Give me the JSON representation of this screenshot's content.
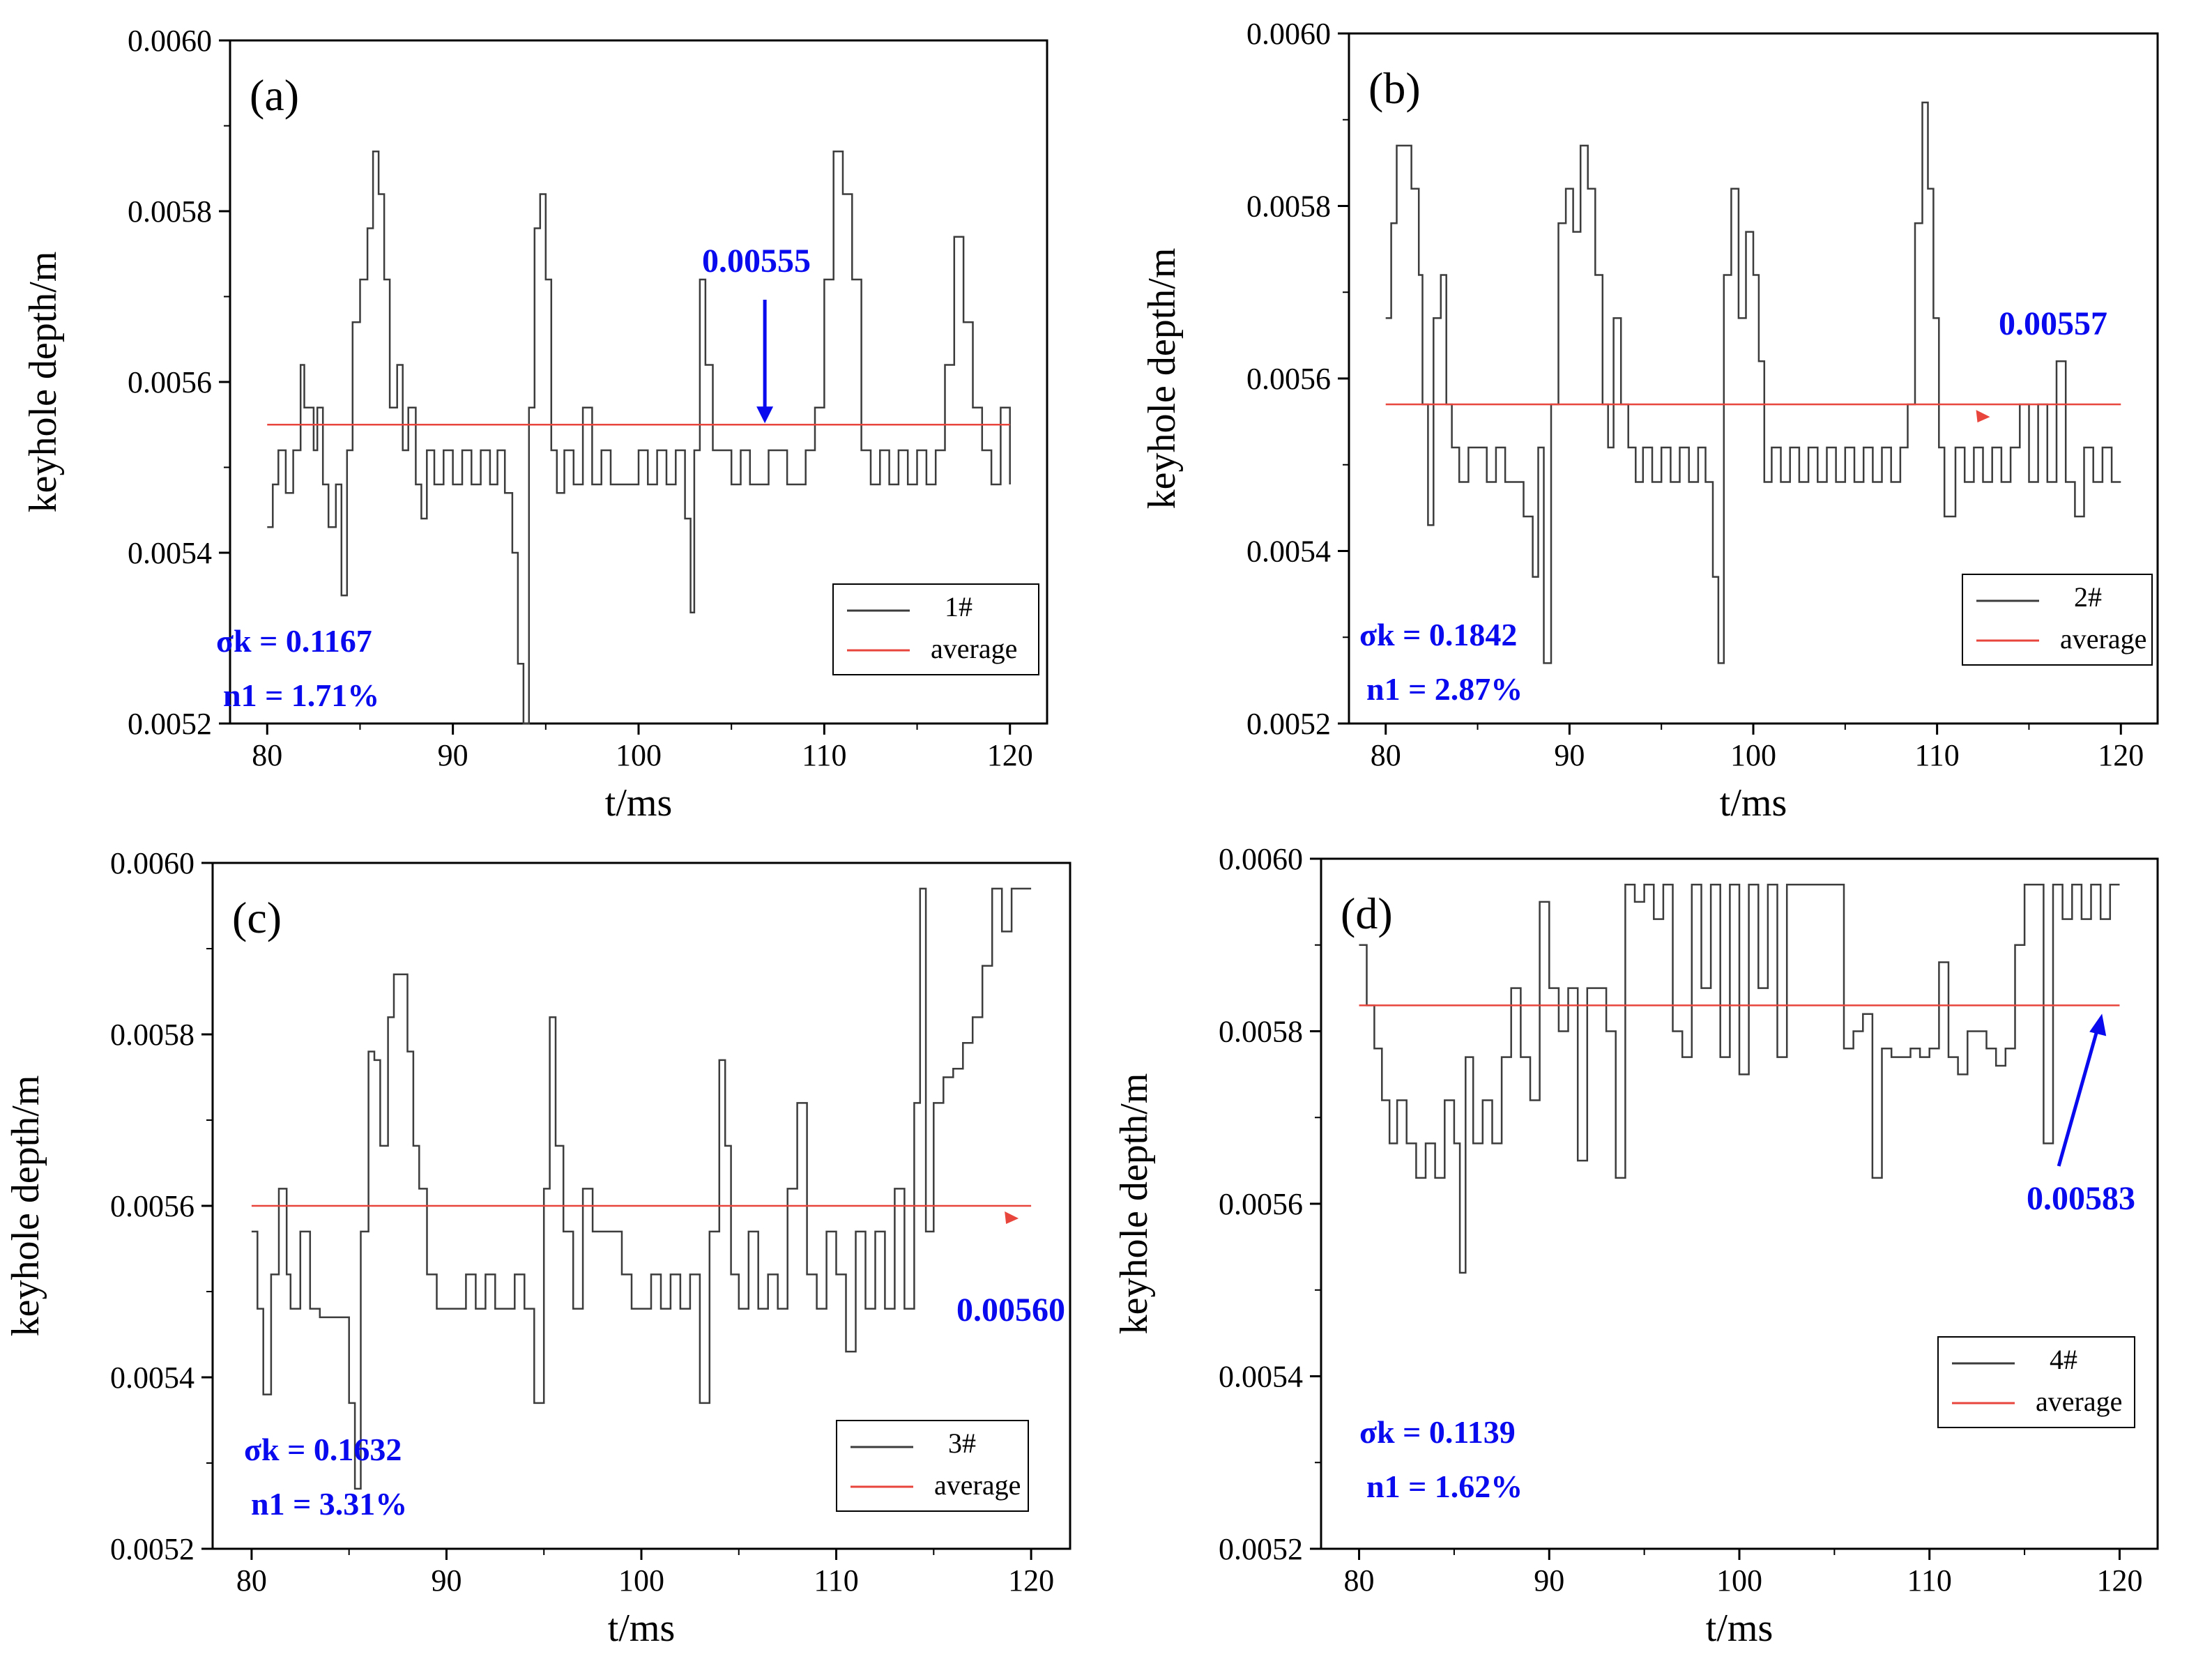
{
  "colors": {
    "series": "#3c3c3c",
    "average": "#e8453c",
    "annotation": "#0a0aee"
  },
  "chart_data": [
    {
      "panel": "(a)",
      "type": "line",
      "xlabel": "t/ms",
      "ylabel": "keyhole depth/m",
      "xlim": [
        78,
        122
      ],
      "ylim": [
        0.0052,
        0.006
      ],
      "xticks": [
        80,
        90,
        100,
        110,
        120
      ],
      "yticks": [
        "0.0052",
        "0.0054",
        "0.0056",
        "0.0058",
        "0.0060"
      ],
      "legend": {
        "entries": [
          "1#",
          "average"
        ],
        "placement": "bottom-right"
      },
      "annotation": {
        "text": "0.00555",
        "arrow": "down",
        "x": 106.8
      },
      "stats": [
        "σk = 0.1167",
        "n1 = 1.71%"
      ],
      "average": 0.00555,
      "series": [
        {
          "name": "1#",
          "x": [
            80,
            80.3,
            80.6,
            81,
            81.4,
            81.8,
            82,
            82.5,
            82.7,
            83,
            83.3,
            83.7,
            84,
            84.3,
            84.6,
            85,
            85.4,
            85.7,
            86,
            86.3,
            86.6,
            87,
            87.3,
            87.6,
            88,
            88.3,
            88.6,
            89,
            89.5,
            90,
            90.5,
            91,
            91.5,
            92,
            92.4,
            92.8,
            93.2,
            93.5,
            93.8,
            94.1,
            94.4,
            94.7,
            95,
            95.3,
            95.6,
            96,
            96.5,
            97,
            97.5,
            98,
            98.5,
            99,
            99.5,
            100,
            100.5,
            101,
            101.5,
            102,
            102.5,
            102.8,
            103,
            103.3,
            103.6,
            104,
            104.5,
            105,
            105.5,
            106,
            106.5,
            107,
            108,
            109,
            109.5,
            110,
            110.5,
            111,
            111.5,
            112,
            112.5,
            113,
            113.5,
            114,
            114.5,
            115,
            115.5,
            116,
            116.5,
            117,
            117.5,
            118,
            118.5,
            119,
            119.5,
            120
          ],
          "values": [
            0.00543,
            0.00548,
            0.00552,
            0.00547,
            0.00552,
            0.00562,
            0.00557,
            0.00552,
            0.00557,
            0.00548,
            0.00543,
            0.00548,
            0.00535,
            0.00552,
            0.00567,
            0.00572,
            0.00578,
            0.00587,
            0.00582,
            0.00572,
            0.00557,
            0.00562,
            0.00552,
            0.00557,
            0.00548,
            0.00544,
            0.00552,
            0.00548,
            0.00552,
            0.00548,
            0.00552,
            0.00548,
            0.00552,
            0.00548,
            0.00552,
            0.00547,
            0.0054,
            0.00527,
            0.0052,
            0.00557,
            0.00578,
            0.00582,
            0.00572,
            0.00552,
            0.00547,
            0.00552,
            0.00548,
            0.00557,
            0.00548,
            0.00552,
            0.00548,
            0.00548,
            0.00548,
            0.00552,
            0.00548,
            0.00552,
            0.00548,
            0.00552,
            0.00544,
            0.00533,
            0.00552,
            0.00572,
            0.00562,
            0.00552,
            0.00552,
            0.00548,
            0.00552,
            0.00548,
            0.00548,
            0.00552,
            0.00548,
            0.00552,
            0.00557,
            0.00572,
            0.00587,
            0.00582,
            0.00572,
            0.00552,
            0.00548,
            0.00552,
            0.00548,
            0.00552,
            0.00548,
            0.00552,
            0.00548,
            0.00552,
            0.00562,
            0.00577,
            0.00567,
            0.00557,
            0.00552,
            0.00548,
            0.00557,
            0.00548
          ]
        }
      ]
    },
    {
      "panel": "(b)",
      "type": "line",
      "xlabel": "t/ms",
      "ylabel": "keyhole depth/m",
      "xlim": [
        78,
        122
      ],
      "ylim": [
        0.0052,
        0.006
      ],
      "xticks": [
        80,
        90,
        100,
        110,
        120
      ],
      "yticks": [
        "0.0052",
        "0.0054",
        "0.0056",
        "0.0058",
        "0.0060"
      ],
      "legend": {
        "entries": [
          "2#",
          "average"
        ],
        "placement": "bottom-right"
      },
      "annotation": {
        "text": "0.00557",
        "arrow": "small-red",
        "x": 112.5
      },
      "stats": [
        "σk = 0.1842",
        "n1 = 2.87%"
      ],
      "average": 0.00557,
      "series": [
        {
          "name": "2#",
          "x": [
            80,
            80.3,
            80.6,
            81,
            81.4,
            81.8,
            82,
            82.3,
            82.6,
            83,
            83.3,
            83.6,
            84,
            84.5,
            85,
            85.5,
            86,
            86.5,
            87,
            87.5,
            88,
            88.3,
            88.6,
            89,
            89.4,
            89.8,
            90.2,
            90.6,
            91,
            91.4,
            91.8,
            92.1,
            92.4,
            92.8,
            93.2,
            93.6,
            94,
            94.5,
            95,
            95.5,
            96,
            96.5,
            97,
            97.4,
            97.8,
            98.1,
            98.4,
            98.8,
            99.2,
            99.6,
            100,
            100.3,
            100.6,
            101,
            101.5,
            102,
            102.5,
            103,
            103.5,
            104,
            104.5,
            105,
            105.5,
            106,
            106.5,
            107,
            107.5,
            108,
            108.4,
            108.8,
            109.2,
            109.5,
            109.8,
            110.1,
            110.4,
            111,
            111.5,
            112,
            112.5,
            113,
            113.5,
            114,
            114.5,
            115,
            115.5,
            116,
            116.5,
            117,
            117.5,
            118,
            118.5,
            119,
            119.5,
            120
          ],
          "values": [
            0.00567,
            0.00578,
            0.00587,
            0.00587,
            0.00582,
            0.00572,
            0.00557,
            0.00543,
            0.00567,
            0.00572,
            0.00557,
            0.00552,
            0.00548,
            0.00552,
            0.00552,
            0.00548,
            0.00552,
            0.00548,
            0.00548,
            0.00544,
            0.00537,
            0.00552,
            0.00527,
            0.00557,
            0.00578,
            0.00582,
            0.00577,
            0.00587,
            0.00582,
            0.00572,
            0.00557,
            0.00552,
            0.00567,
            0.00557,
            0.00552,
            0.00548,
            0.00552,
            0.00548,
            0.00552,
            0.00548,
            0.00552,
            0.00548,
            0.00552,
            0.00548,
            0.00537,
            0.00527,
            0.00572,
            0.00582,
            0.00567,
            0.00577,
            0.00572,
            0.00562,
            0.00548,
            0.00552,
            0.00548,
            0.00552,
            0.00548,
            0.00552,
            0.00548,
            0.00552,
            0.00548,
            0.00552,
            0.00548,
            0.00552,
            0.00548,
            0.00552,
            0.00548,
            0.00552,
            0.00557,
            0.00578,
            0.00592,
            0.00582,
            0.00567,
            0.00552,
            0.00544,
            0.00552,
            0.00548,
            0.00552,
            0.00548,
            0.00552,
            0.00548,
            0.00552,
            0.00557,
            0.00548,
            0.00557,
            0.00548,
            0.00562,
            0.00548,
            0.00544,
            0.00552,
            0.00548,
            0.00552,
            0.00548,
            0.00548
          ]
        }
      ]
    },
    {
      "panel": "(c)",
      "type": "line",
      "xlabel": "t/ms",
      "ylabel": "keyhole depth/m",
      "xlim": [
        78,
        122
      ],
      "ylim": [
        0.0052,
        0.006
      ],
      "xticks": [
        80,
        90,
        100,
        110,
        120
      ],
      "yticks": [
        "0.0052",
        "0.0054",
        "0.0056",
        "0.0058",
        "0.0060"
      ],
      "legend": {
        "entries": [
          "3#",
          "average"
        ],
        "placement": "bottom-right"
      },
      "annotation": {
        "text": "0.00560",
        "arrow": "small-red",
        "x": 119
      },
      "stats": [
        "σk = 0.1632",
        "n1 = 3.31%"
      ],
      "average": 0.0056,
      "series": [
        {
          "name": "3#",
          "x": [
            80,
            80.3,
            80.6,
            81,
            81.4,
            81.8,
            82,
            82.5,
            83,
            83.5,
            84,
            84.5,
            85,
            85.3,
            85.6,
            86,
            86.3,
            86.6,
            87,
            87.3,
            87.6,
            88,
            88.3,
            88.6,
            89,
            89.5,
            90,
            90.5,
            91,
            91.5,
            92,
            92.5,
            93,
            93.5,
            94,
            94.5,
            95,
            95.3,
            95.6,
            96,
            96.5,
            97,
            97.5,
            98,
            98.5,
            99,
            99.5,
            100,
            100.5,
            101,
            101.5,
            102,
            102.5,
            103,
            103.5,
            104,
            104.3,
            104.6,
            105,
            105.5,
            106,
            106.5,
            107,
            107.5,
            108,
            108.5,
            109,
            109.5,
            110,
            110.5,
            111,
            111.5,
            112,
            112.5,
            113,
            113.5,
            114,
            114.3,
            114.6,
            115,
            115.5,
            116,
            116.5,
            117,
            117.5,
            118,
            118.5,
            119,
            119.5,
            120
          ],
          "values": [
            0.00557,
            0.00548,
            0.00538,
            0.00552,
            0.00562,
            0.00552,
            0.00548,
            0.00557,
            0.00548,
            0.00547,
            0.00547,
            0.00547,
            0.00537,
            0.00527,
            0.00557,
            0.00578,
            0.00577,
            0.00567,
            0.00582,
            0.00587,
            0.00587,
            0.00578,
            0.00567,
            0.00562,
            0.00552,
            0.00548,
            0.00548,
            0.00548,
            0.00552,
            0.00548,
            0.00552,
            0.00548,
            0.00548,
            0.00552,
            0.00548,
            0.00537,
            0.00562,
            0.00582,
            0.00567,
            0.00557,
            0.00548,
            0.00562,
            0.00557,
            0.00557,
            0.00557,
            0.00552,
            0.00548,
            0.00548,
            0.00552,
            0.00548,
            0.00552,
            0.00548,
            0.00552,
            0.00537,
            0.00557,
            0.00577,
            0.00567,
            0.00552,
            0.00548,
            0.00557,
            0.00548,
            0.00552,
            0.00548,
            0.00562,
            0.00572,
            0.00552,
            0.00548,
            0.00557,
            0.00552,
            0.00543,
            0.00557,
            0.00548,
            0.00557,
            0.00548,
            0.00562,
            0.00548,
            0.00572,
            0.00597,
            0.00557,
            0.00572,
            0.00575,
            0.00576,
            0.00579,
            0.00582,
            0.00588,
            0.00597,
            0.00592,
            0.00597,
            0.00597,
            0.00597
          ]
        }
      ]
    },
    {
      "panel": "(d)",
      "type": "line",
      "xlabel": "t/ms",
      "ylabel": "keyhole depth/m",
      "xlim": [
        78,
        122
      ],
      "ylim": [
        0.0052,
        0.006
      ],
      "xticks": [
        80,
        90,
        100,
        110,
        120
      ],
      "yticks": [
        "0.0052",
        "0.0054",
        "0.0056",
        "0.0058",
        "0.0060"
      ],
      "legend": {
        "entries": [
          "4#",
          "average"
        ],
        "placement": "top-right"
      },
      "annotation": {
        "text": "0.00583",
        "arrow": "up-right",
        "x": 119
      },
      "stats": [
        "σk = 0.1139",
        "n1 = 1.62%"
      ],
      "average": 0.00583,
      "series": [
        {
          "name": "4#",
          "x": [
            80,
            80.4,
            80.8,
            81.2,
            81.6,
            82,
            82.5,
            83,
            83.5,
            84,
            84.5,
            85,
            85.3,
            85.6,
            86,
            86.5,
            87,
            87.5,
            88,
            88.5,
            89,
            89.5,
            90,
            90.5,
            91,
            91.5,
            92,
            92.5,
            93,
            93.5,
            94,
            94.5,
            95,
            95.5,
            96,
            96.5,
            97,
            97.5,
            98,
            98.5,
            99,
            99.5,
            100,
            100.5,
            101,
            101.5,
            102,
            102.5,
            103,
            103.5,
            104,
            104.5,
            105,
            105.5,
            106,
            106.5,
            107,
            107.5,
            108,
            108.5,
            109,
            109.5,
            110,
            110.5,
            111,
            111.5,
            112,
            112.5,
            113,
            113.5,
            114,
            114.5,
            115,
            115.5,
            116,
            116.5,
            117,
            117.5,
            118,
            118.5,
            119,
            119.5,
            120
          ],
          "values": [
            0.0059,
            0.00583,
            0.00578,
            0.00572,
            0.00567,
            0.00572,
            0.00567,
            0.00563,
            0.00567,
            0.00563,
            0.00572,
            0.00567,
            0.00552,
            0.00577,
            0.00567,
            0.00572,
            0.00567,
            0.00577,
            0.00585,
            0.00577,
            0.00572,
            0.00595,
            0.00585,
            0.0058,
            0.00585,
            0.00565,
            0.00585,
            0.00585,
            0.0058,
            0.00563,
            0.00597,
            0.00595,
            0.00597,
            0.00593,
            0.00597,
            0.0058,
            0.00577,
            0.00597,
            0.00585,
            0.00597,
            0.00577,
            0.00597,
            0.00575,
            0.00597,
            0.00585,
            0.00597,
            0.00577,
            0.00597,
            0.00597,
            0.00597,
            0.00597,
            0.00597,
            0.00597,
            0.00578,
            0.0058,
            0.00582,
            0.00563,
            0.00578,
            0.00577,
            0.00577,
            0.00578,
            0.00577,
            0.00578,
            0.00588,
            0.00577,
            0.00575,
            0.0058,
            0.0058,
            0.00578,
            0.00576,
            0.00578,
            0.0059,
            0.00597,
            0.00597,
            0.00567,
            0.00597,
            0.00593,
            0.00597,
            0.00593,
            0.00597,
            0.00593,
            0.00597,
            0.00597
          ]
        }
      ]
    }
  ]
}
